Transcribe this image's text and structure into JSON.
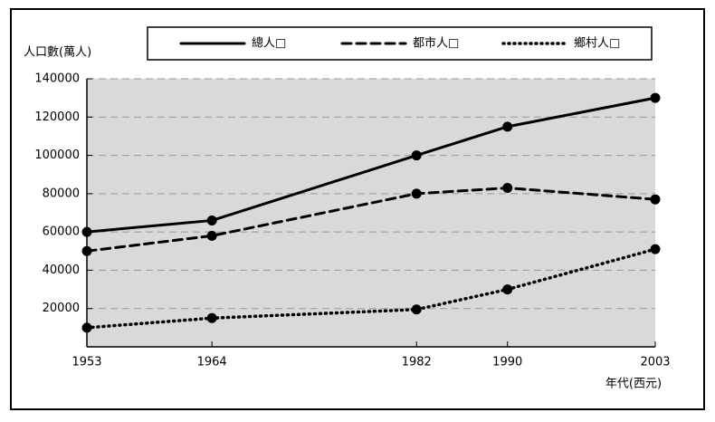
{
  "chart_data": {
    "type": "line",
    "y_label": "人口數(萬人)",
    "x_label": "年代(西元)",
    "x": [
      1953,
      1964,
      1982,
      1990,
      2003
    ],
    "xlim": [
      1953,
      2003
    ],
    "xticks": [
      1953,
      1964,
      1982,
      1990,
      2003
    ],
    "ylim": [
      0,
      140000
    ],
    "yticks": [
      20000,
      40000,
      60000,
      80000,
      100000,
      120000,
      140000
    ],
    "grid": true,
    "series": [
      {
        "name": "總人□",
        "color": "#000000",
        "dash": "solid",
        "values": [
          60000,
          66000,
          100000,
          115000,
          130000
        ]
      },
      {
        "name": "都市人□",
        "color": "#000000",
        "dash": "dashed",
        "values": [
          50000,
          58000,
          80000,
          83000,
          77000
        ]
      },
      {
        "name": "鄉村人□",
        "color": "#000000",
        "dash": "dotted",
        "values": [
          10000,
          15000,
          19500,
          30000,
          51000
        ]
      }
    ]
  }
}
